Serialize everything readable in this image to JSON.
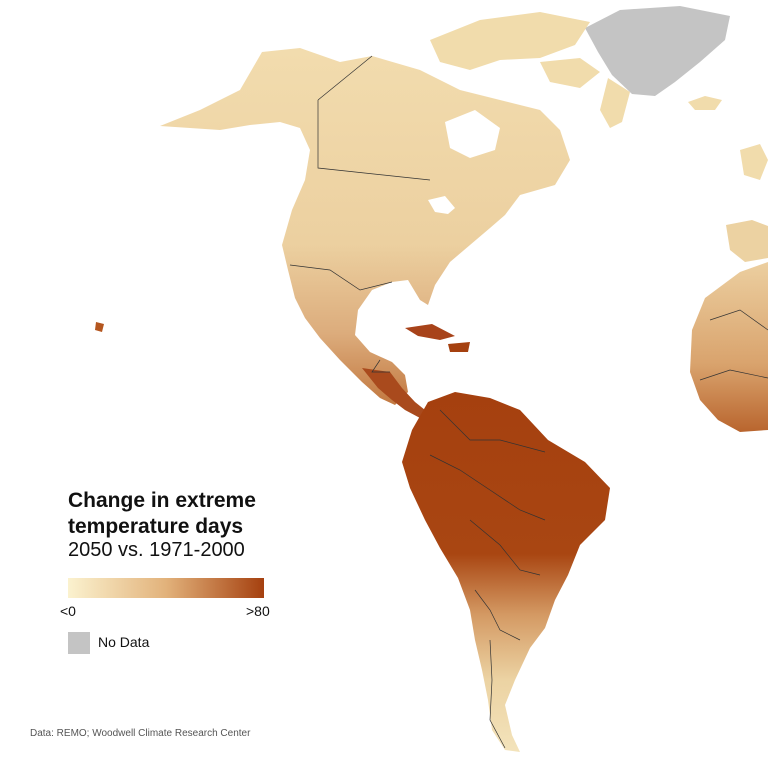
{
  "legend": {
    "title_line1": "Change in extreme",
    "title_line2": "temperature days",
    "subtitle": "2050 vs. 1971-2000",
    "min_label": "<0",
    "max_label": ">80",
    "ramp_colors": [
      "#fbf2cf",
      "#e2b27b",
      "#a5400f"
    ],
    "no_data_label": "No Data",
    "no_data_color": "#c4c4c4"
  },
  "source": "Data: REMO; Woodwell Climate Research Center",
  "colors": {
    "low": "#f5e3b5",
    "mid": "#dcb07a",
    "high": "#b05a2a",
    "extreme": "#a5400f",
    "border": "#333333"
  }
}
